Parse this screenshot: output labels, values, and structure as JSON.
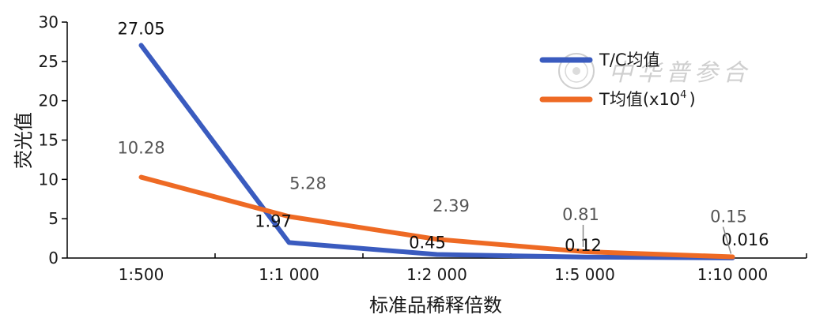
{
  "chart_data": {
    "type": "line",
    "categories": [
      "1:500",
      "1:1 000",
      "1:2 000",
      "1:5 000",
      "1:10 000"
    ],
    "xlabel": "标准品稀释倍数",
    "ylabel": "荧光值",
    "ylim": [
      0,
      30
    ],
    "yticks": [
      "0",
      "5",
      "10",
      "15",
      "20",
      "25",
      "30"
    ],
    "grid": false,
    "legend_position": "top-right",
    "series": [
      {
        "name": "T/C均值",
        "color": "#3a5bbf",
        "values": [
          27.05,
          1.97,
          0.45,
          0.12,
          0.016
        ],
        "labels": [
          "27.05",
          "1.97",
          "0.45",
          "0.12",
          "0.016"
        ]
      },
      {
        "name": "T均值(x10",
        "name_sup": "4",
        "name_suffix": ")",
        "color": "#ee6a24",
        "values": [
          10.28,
          5.28,
          2.39,
          0.81,
          0.15
        ],
        "labels": [
          "10.28",
          "5.28",
          "2.39",
          "0.81",
          "0.15"
        ]
      }
    ]
  },
  "watermark": {
    "text": "中华普参合"
  }
}
